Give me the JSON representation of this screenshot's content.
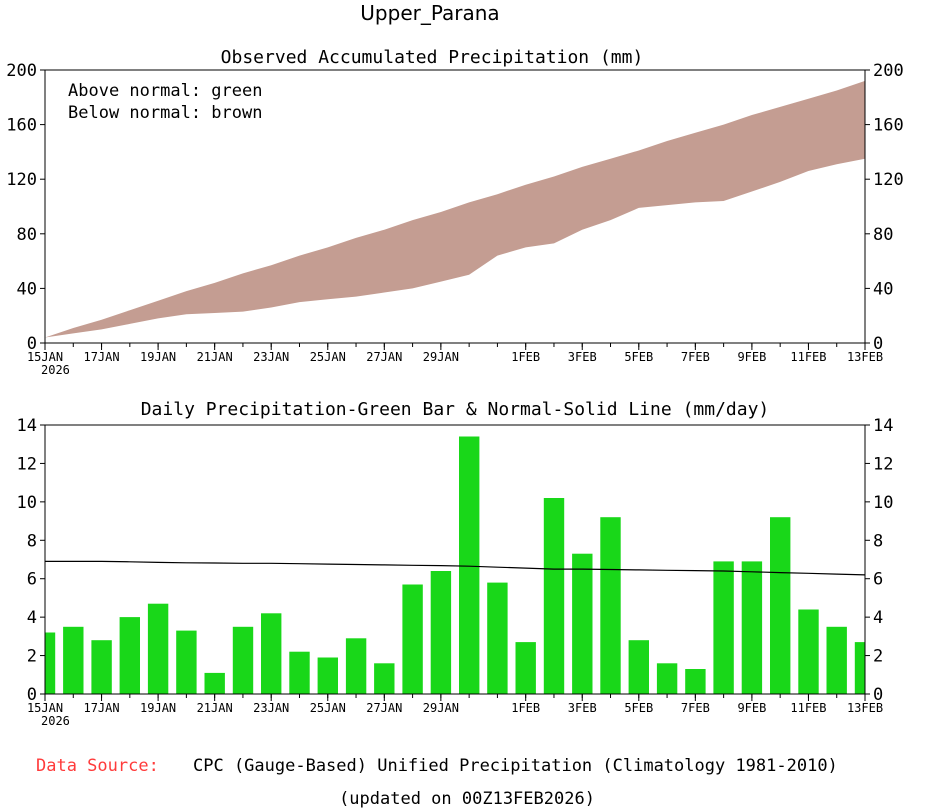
{
  "title": "Upper_Parana",
  "footer": {
    "source_label": "Data Source:",
    "source_text": "CPC (Gauge-Based) Unified Precipitation (Climatology 1981-2010)",
    "updated": "(updated on 00Z13FEB2026)"
  },
  "colors": {
    "below_normal_fill": "#c49d92",
    "bar_fill": "#19d719",
    "source_label": "#ff3b3b"
  },
  "chart_data": [
    {
      "type": "area",
      "title": "Observed Accumulated Precipitation (mm)",
      "legend": {
        "line1": "Above normal: green",
        "line2": "Below normal: brown",
        "placement": "top-left"
      },
      "ylim": [
        0,
        200
      ],
      "yticks": [
        0,
        40,
        80,
        120,
        160,
        200
      ],
      "x_tick_labels": [
        "15JAN",
        "17JAN",
        "19JAN",
        "21JAN",
        "23JAN",
        "25JAN",
        "27JAN",
        "29JAN",
        "1FEB",
        "3FEB",
        "5FEB",
        "7FEB",
        "9FEB",
        "11FEB",
        "13FEB"
      ],
      "x_tick_days": [
        0,
        2,
        4,
        6,
        8,
        10,
        12,
        14,
        17,
        19,
        21,
        23,
        25,
        27,
        29
      ],
      "x_year_label": "2026",
      "x_days": [
        0,
        1,
        2,
        3,
        4,
        5,
        6,
        7,
        8,
        9,
        10,
        11,
        12,
        13,
        14,
        15,
        16,
        17,
        18,
        19,
        20,
        21,
        22,
        23,
        24,
        25,
        26,
        27,
        28,
        29
      ],
      "series": [
        {
          "name": "normal",
          "values": [
            4,
            11,
            17,
            24,
            31,
            38,
            44,
            51,
            57,
            64,
            70,
            77,
            83,
            90,
            96,
            103,
            109,
            116,
            122,
            129,
            135,
            141,
            148,
            154,
            160,
            167,
            173,
            179,
            185,
            192
          ]
        },
        {
          "name": "observed",
          "values": [
            4,
            7,
            10,
            14,
            18,
            21,
            22,
            23,
            26,
            30,
            32,
            34,
            37,
            40,
            45,
            50,
            64,
            70,
            73,
            83,
            90,
            99,
            101,
            103,
            104,
            111,
            118,
            126,
            131,
            135
          ]
        }
      ]
    },
    {
      "type": "bar",
      "title": "Daily Precipitation-Green Bar & Normal-Solid Line (mm/day)",
      "ylim": [
        0,
        14
      ],
      "yticks": [
        0,
        2,
        4,
        6,
        8,
        10,
        12,
        14
      ],
      "x_tick_labels": [
        "15JAN",
        "17JAN",
        "19JAN",
        "21JAN",
        "23JAN",
        "25JAN",
        "27JAN",
        "29JAN",
        "1FEB",
        "3FEB",
        "5FEB",
        "7FEB",
        "9FEB",
        "11FEB",
        "13FEB"
      ],
      "x_tick_days": [
        0,
        2,
        4,
        6,
        8,
        10,
        12,
        14,
        17,
        19,
        21,
        23,
        25,
        27,
        29
      ],
      "x_year_label": "2026",
      "x_days": [
        0,
        1,
        2,
        3,
        4,
        5,
        6,
        7,
        8,
        9,
        10,
        11,
        12,
        13,
        14,
        15,
        16,
        17,
        18,
        19,
        20,
        21,
        22,
        23,
        24,
        25,
        26,
        27,
        28,
        29
      ],
      "series": [
        {
          "name": "daily",
          "type": "bar",
          "values": [
            3.2,
            3.5,
            2.8,
            4.0,
            4.7,
            3.3,
            1.1,
            3.5,
            4.2,
            2.2,
            1.9,
            2.9,
            1.6,
            5.7,
            6.4,
            13.4,
            5.8,
            2.7,
            10.2,
            7.3,
            9.2,
            2.8,
            1.6,
            1.3,
            6.9,
            6.9,
            9.2,
            4.4,
            3.5,
            2.7
          ]
        },
        {
          "name": "normal",
          "type": "line",
          "values": [
            6.9,
            6.9,
            6.9,
            6.88,
            6.85,
            6.83,
            6.82,
            6.8,
            6.8,
            6.78,
            6.76,
            6.74,
            6.72,
            6.7,
            6.68,
            6.65,
            6.6,
            6.55,
            6.5,
            6.5,
            6.48,
            6.46,
            6.44,
            6.42,
            6.4,
            6.36,
            6.32,
            6.28,
            6.24,
            6.2
          ]
        }
      ]
    }
  ]
}
